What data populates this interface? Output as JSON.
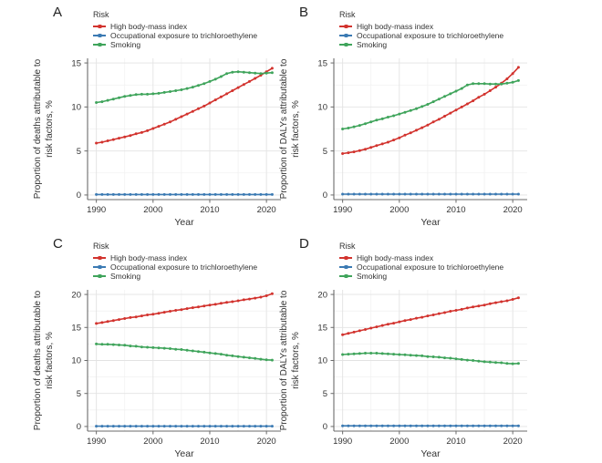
{
  "figure": {
    "background": "#ffffff"
  },
  "colors": {
    "red": "#d2332e",
    "blue": "#3b7ab3",
    "green": "#3fa45b",
    "grid_major": "#e3e3e3",
    "grid_minor": "#f1f1f1",
    "axis": "#6b6b6b",
    "text": "#333333"
  },
  "legend": {
    "title": "Risk",
    "position": "top",
    "entries": [
      {
        "label": "High body-mass index",
        "color": "red"
      },
      {
        "label": "Occupational exposure to trichloroethylene",
        "color": "blue"
      },
      {
        "label": "Smoking",
        "color": "green"
      }
    ]
  },
  "years": [
    1990,
    1991,
    1992,
    1993,
    1994,
    1995,
    1996,
    1997,
    1998,
    1999,
    2000,
    2001,
    2002,
    2003,
    2004,
    2005,
    2006,
    2007,
    2008,
    2009,
    2010,
    2011,
    2012,
    2013,
    2014,
    2015,
    2016,
    2017,
    2018,
    2019,
    2020,
    2021
  ],
  "chart_data": [
    {
      "type": "line",
      "letter": "A",
      "ylabel_line1": "Proportion of deaths attributable to",
      "ylabel_line2": "risk factors, %",
      "xlabel": "Year",
      "ylim": [
        0,
        15
      ],
      "yticks": [
        0,
        5,
        10,
        15
      ],
      "xticks": [
        1990,
        2000,
        2010,
        2020
      ],
      "grid": true,
      "series": [
        {
          "name": "High body-mass index",
          "color": "red",
          "values": [
            5.9,
            6.0,
            6.15,
            6.3,
            6.45,
            6.6,
            6.75,
            6.95,
            7.1,
            7.3,
            7.55,
            7.8,
            8.05,
            8.3,
            8.6,
            8.9,
            9.2,
            9.5,
            9.8,
            10.1,
            10.45,
            10.8,
            11.15,
            11.5,
            11.85,
            12.2,
            12.55,
            12.9,
            13.25,
            13.6,
            14.0,
            14.4
          ]
        },
        {
          "name": "Occupational exposure to trichloroethylene",
          "color": "blue",
          "values": [
            0.05,
            0.05,
            0.05,
            0.05,
            0.05,
            0.05,
            0.05,
            0.05,
            0.05,
            0.05,
            0.05,
            0.05,
            0.05,
            0.05,
            0.05,
            0.05,
            0.05,
            0.05,
            0.05,
            0.05,
            0.05,
            0.05,
            0.05,
            0.05,
            0.05,
            0.05,
            0.05,
            0.05,
            0.05,
            0.05,
            0.05,
            0.05
          ]
        },
        {
          "name": "Smoking",
          "color": "green",
          "values": [
            10.5,
            10.6,
            10.75,
            10.9,
            11.05,
            11.2,
            11.3,
            11.4,
            11.45,
            11.45,
            11.5,
            11.55,
            11.65,
            11.75,
            11.85,
            11.95,
            12.1,
            12.25,
            12.45,
            12.65,
            12.9,
            13.15,
            13.45,
            13.8,
            13.95,
            14.0,
            13.95,
            13.9,
            13.85,
            13.8,
            13.85,
            13.9
          ]
        }
      ]
    },
    {
      "type": "line",
      "letter": "B",
      "ylabel_line1": "Proportion of DALYs attributable to",
      "ylabel_line2": "risk factors, %",
      "xlabel": "Year",
      "ylim": [
        0,
        15
      ],
      "yticks": [
        0,
        5,
        10,
        15
      ],
      "xticks": [
        1990,
        2000,
        2010,
        2020
      ],
      "grid": true,
      "series": [
        {
          "name": "High body-mass index",
          "color": "red",
          "values": [
            4.7,
            4.8,
            4.9,
            5.05,
            5.2,
            5.4,
            5.6,
            5.8,
            6.0,
            6.25,
            6.5,
            6.8,
            7.05,
            7.35,
            7.65,
            7.95,
            8.3,
            8.6,
            8.95,
            9.3,
            9.65,
            10.0,
            10.35,
            10.7,
            11.1,
            11.45,
            11.85,
            12.25,
            12.7,
            13.2,
            13.8,
            14.5
          ]
        },
        {
          "name": "Occupational exposure to trichloroethylene",
          "color": "blue",
          "values": [
            0.1,
            0.1,
            0.1,
            0.1,
            0.1,
            0.1,
            0.1,
            0.1,
            0.1,
            0.1,
            0.1,
            0.1,
            0.1,
            0.1,
            0.1,
            0.1,
            0.1,
            0.1,
            0.1,
            0.1,
            0.1,
            0.1,
            0.1,
            0.1,
            0.1,
            0.1,
            0.1,
            0.1,
            0.1,
            0.1,
            0.1,
            0.1
          ]
        },
        {
          "name": "Smoking",
          "color": "green",
          "values": [
            7.5,
            7.6,
            7.75,
            7.9,
            8.1,
            8.3,
            8.5,
            8.65,
            8.85,
            9.0,
            9.2,
            9.4,
            9.6,
            9.8,
            10.05,
            10.3,
            10.6,
            10.9,
            11.2,
            11.5,
            11.8,
            12.1,
            12.5,
            12.65,
            12.65,
            12.65,
            12.6,
            12.6,
            12.6,
            12.7,
            12.8,
            13.0
          ]
        }
      ]
    },
    {
      "type": "line",
      "letter": "C",
      "ylabel_line1": "Proportion of deaths attributable to",
      "ylabel_line2": "risk factors, %",
      "xlabel": "Year",
      "ylim": [
        0,
        20
      ],
      "yticks": [
        0,
        5,
        10,
        15,
        20
      ],
      "xticks": [
        1990,
        2000,
        2010,
        2020
      ],
      "grid": true,
      "series": [
        {
          "name": "High body-mass index",
          "color": "red",
          "values": [
            15.6,
            15.75,
            15.9,
            16.05,
            16.2,
            16.35,
            16.5,
            16.6,
            16.75,
            16.9,
            17.0,
            17.15,
            17.3,
            17.45,
            17.6,
            17.7,
            17.85,
            18.0,
            18.1,
            18.25,
            18.4,
            18.5,
            18.65,
            18.8,
            18.9,
            19.05,
            19.2,
            19.3,
            19.45,
            19.6,
            19.8,
            20.1
          ]
        },
        {
          "name": "Occupational exposure to trichloroethylene",
          "color": "blue",
          "values": [
            0.05,
            0.05,
            0.05,
            0.05,
            0.05,
            0.05,
            0.05,
            0.05,
            0.05,
            0.05,
            0.05,
            0.05,
            0.05,
            0.05,
            0.05,
            0.05,
            0.05,
            0.05,
            0.05,
            0.05,
            0.05,
            0.05,
            0.05,
            0.05,
            0.05,
            0.05,
            0.05,
            0.05,
            0.05,
            0.05,
            0.05,
            0.05
          ]
        },
        {
          "name": "Smoking",
          "color": "green",
          "values": [
            12.5,
            12.45,
            12.45,
            12.4,
            12.35,
            12.3,
            12.2,
            12.15,
            12.05,
            12.0,
            11.95,
            11.9,
            11.85,
            11.8,
            11.7,
            11.65,
            11.55,
            11.45,
            11.35,
            11.25,
            11.15,
            11.05,
            10.95,
            10.8,
            10.7,
            10.6,
            10.5,
            10.4,
            10.3,
            10.2,
            10.1,
            10.05
          ]
        }
      ]
    },
    {
      "type": "line",
      "letter": "D",
      "ylabel_line1": "Proportion of DALYs attributable to",
      "ylabel_line2": "risk factors, %",
      "xlabel": "Year",
      "ylim": [
        0,
        20
      ],
      "yticks": [
        0,
        5,
        10,
        15,
        20
      ],
      "xticks": [
        1990,
        2000,
        2010,
        2020
      ],
      "grid": true,
      "series": [
        {
          "name": "High body-mass index",
          "color": "red",
          "values": [
            13.9,
            14.1,
            14.3,
            14.5,
            14.7,
            14.9,
            15.1,
            15.3,
            15.5,
            15.65,
            15.85,
            16.05,
            16.2,
            16.4,
            16.55,
            16.75,
            16.9,
            17.1,
            17.25,
            17.45,
            17.6,
            17.75,
            17.95,
            18.1,
            18.25,
            18.4,
            18.6,
            18.75,
            18.9,
            19.05,
            19.25,
            19.5
          ]
        },
        {
          "name": "Occupational exposure to trichloroethylene",
          "color": "blue",
          "values": [
            0.1,
            0.1,
            0.1,
            0.1,
            0.1,
            0.1,
            0.1,
            0.1,
            0.1,
            0.1,
            0.1,
            0.1,
            0.1,
            0.1,
            0.1,
            0.1,
            0.1,
            0.1,
            0.1,
            0.1,
            0.1,
            0.1,
            0.1,
            0.1,
            0.1,
            0.1,
            0.1,
            0.1,
            0.1,
            0.1,
            0.1,
            0.1
          ]
        },
        {
          "name": "Smoking",
          "color": "green",
          "values": [
            10.9,
            10.95,
            11.0,
            11.05,
            11.1,
            11.1,
            11.1,
            11.05,
            11.0,
            10.95,
            10.9,
            10.85,
            10.8,
            10.75,
            10.7,
            10.6,
            10.55,
            10.5,
            10.4,
            10.35,
            10.25,
            10.15,
            10.05,
            10.0,
            9.9,
            9.8,
            9.75,
            9.7,
            9.65,
            9.55,
            9.5,
            9.55
          ]
        }
      ]
    }
  ]
}
